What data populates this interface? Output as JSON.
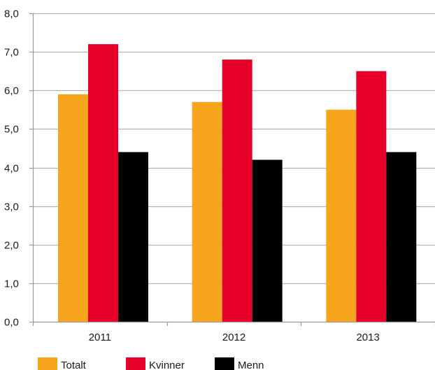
{
  "chart_data": {
    "type": "bar",
    "title": "",
    "xlabel": "",
    "ylabel": "",
    "categories": [
      "2011",
      "2012",
      "2013"
    ],
    "series": [
      {
        "name": "Totalt",
        "color": "#F7A51C",
        "values": [
          5.9,
          5.7,
          5.5
        ]
      },
      {
        "name": "Kvinner",
        "color": "#E8002A",
        "values": [
          7.2,
          6.8,
          6.5
        ]
      },
      {
        "name": "Menn",
        "color": "#000000",
        "values": [
          4.4,
          4.2,
          4.4
        ]
      }
    ],
    "ylim": [
      0,
      8
    ],
    "yticks": [
      "0,0",
      "1,0",
      "2,0",
      "3,0",
      "4,0",
      "5,0",
      "6,0",
      "7,0",
      "8,0"
    ],
    "grid": true,
    "legend_position": "bottom-left"
  }
}
